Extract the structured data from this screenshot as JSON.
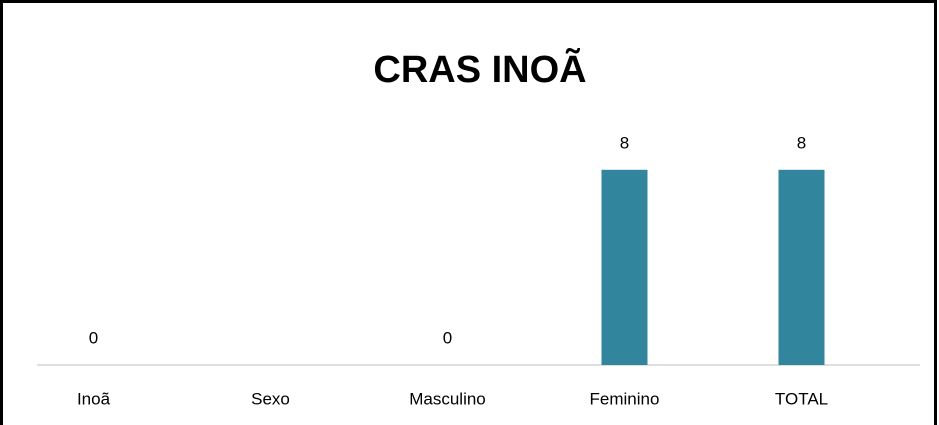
{
  "chart_data": {
    "type": "bar",
    "title": "CRAS INOÃ",
    "categories": [
      "Inoã",
      "Sexo",
      "Masculino",
      "Feminino",
      "TOTAL"
    ],
    "values": [
      0,
      null,
      0,
      8,
      8
    ],
    "color": "#31859c",
    "ylim": [
      0,
      10
    ],
    "data_labels": true
  }
}
